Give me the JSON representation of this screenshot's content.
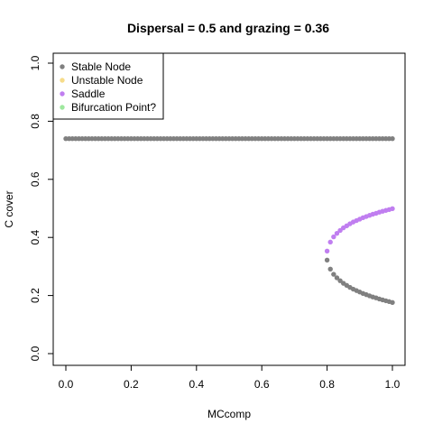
{
  "chart_data": {
    "type": "scatter",
    "title": "Dispersal =  0.5 and grazing = 0.36",
    "xlabel": "MCcomp",
    "ylabel": "C cover",
    "xlim": [
      0,
      1
    ],
    "ylim": [
      0,
      1
    ],
    "x_ticks": [
      "0.0",
      "0.2",
      "0.4",
      "0.6",
      "0.8",
      "1.0"
    ],
    "y_ticks": [
      "0.0",
      "0.2",
      "0.4",
      "0.6",
      "0.8",
      "1.0"
    ],
    "legend_position": "top-left",
    "legend": [
      {
        "label": "Stable Node",
        "color": "#808080"
      },
      {
        "label": "Unstable Node",
        "color": "#f6dc8a"
      },
      {
        "label": "Saddle",
        "color": "#c07ef0"
      },
      {
        "label": "Bifurcation Point?",
        "color": "#9ee89e"
      }
    ],
    "series": [
      {
        "name": "Stable Node",
        "color": "#808080",
        "x": [
          0.0,
          0.01,
          0.02,
          0.03,
          0.04,
          0.05,
          0.06,
          0.07,
          0.08,
          0.09,
          0.1,
          0.11,
          0.12,
          0.13,
          0.14,
          0.15,
          0.16,
          0.17,
          0.18,
          0.19,
          0.2,
          0.21,
          0.22,
          0.23,
          0.24,
          0.25,
          0.26,
          0.27,
          0.28,
          0.29,
          0.3,
          0.31,
          0.32,
          0.33,
          0.34,
          0.35,
          0.36,
          0.37,
          0.38,
          0.39,
          0.4,
          0.41,
          0.42,
          0.43,
          0.44,
          0.45,
          0.46,
          0.47,
          0.48,
          0.49,
          0.5,
          0.51,
          0.52,
          0.53,
          0.54,
          0.55,
          0.56,
          0.57,
          0.58,
          0.59,
          0.6,
          0.61,
          0.62,
          0.63,
          0.64,
          0.65,
          0.66,
          0.67,
          0.68,
          0.69,
          0.7,
          0.71,
          0.72,
          0.73,
          0.74,
          0.75,
          0.76,
          0.77,
          0.78,
          0.79,
          0.8,
          0.81,
          0.82,
          0.83,
          0.84,
          0.85,
          0.86,
          0.87,
          0.88,
          0.89,
          0.9,
          0.91,
          0.92,
          0.93,
          0.94,
          0.95,
          0.96,
          0.97,
          0.98,
          0.99,
          1.0,
          0.8,
          0.81,
          0.82,
          0.83,
          0.84,
          0.85,
          0.86,
          0.87,
          0.88,
          0.89,
          0.9,
          0.91,
          0.92,
          0.93,
          0.94,
          0.95,
          0.96,
          0.97,
          0.98,
          0.99,
          1.0
        ],
        "y": [
          0.74,
          0.74,
          0.74,
          0.74,
          0.74,
          0.74,
          0.74,
          0.74,
          0.74,
          0.74,
          0.74,
          0.74,
          0.74,
          0.74,
          0.74,
          0.74,
          0.74,
          0.74,
          0.74,
          0.74,
          0.74,
          0.74,
          0.74,
          0.74,
          0.74,
          0.74,
          0.74,
          0.74,
          0.74,
          0.74,
          0.74,
          0.74,
          0.74,
          0.74,
          0.74,
          0.74,
          0.74,
          0.74,
          0.74,
          0.74,
          0.74,
          0.74,
          0.74,
          0.74,
          0.74,
          0.74,
          0.74,
          0.74,
          0.74,
          0.74,
          0.74,
          0.74,
          0.74,
          0.74,
          0.74,
          0.74,
          0.74,
          0.74,
          0.74,
          0.74,
          0.74,
          0.74,
          0.74,
          0.74,
          0.74,
          0.74,
          0.74,
          0.74,
          0.74,
          0.74,
          0.74,
          0.74,
          0.74,
          0.74,
          0.74,
          0.74,
          0.74,
          0.74,
          0.74,
          0.74,
          0.74,
          0.74,
          0.74,
          0.74,
          0.74,
          0.74,
          0.74,
          0.74,
          0.74,
          0.74,
          0.74,
          0.74,
          0.74,
          0.74,
          0.74,
          0.74,
          0.74,
          0.74,
          0.74,
          0.74,
          0.74,
          0.322,
          0.291,
          0.273,
          0.261,
          0.251,
          0.242,
          0.235,
          0.228,
          0.222,
          0.217,
          0.212,
          0.207,
          0.203,
          0.199,
          0.195,
          0.192,
          0.188,
          0.185,
          0.182,
          0.179,
          0.176
        ]
      },
      {
        "name": "Saddle",
        "color": "#c07ef0",
        "x": [
          0.8,
          0.81,
          0.82,
          0.83,
          0.84,
          0.85,
          0.86,
          0.87,
          0.88,
          0.89,
          0.9,
          0.91,
          0.92,
          0.93,
          0.94,
          0.95,
          0.96,
          0.97,
          0.98,
          0.99,
          1.0
        ],
        "y": [
          0.353,
          0.384,
          0.402,
          0.414,
          0.424,
          0.433,
          0.44,
          0.447,
          0.453,
          0.458,
          0.463,
          0.468,
          0.472,
          0.476,
          0.48,
          0.483,
          0.487,
          0.49,
          0.493,
          0.496,
          0.499
        ]
      }
    ]
  }
}
